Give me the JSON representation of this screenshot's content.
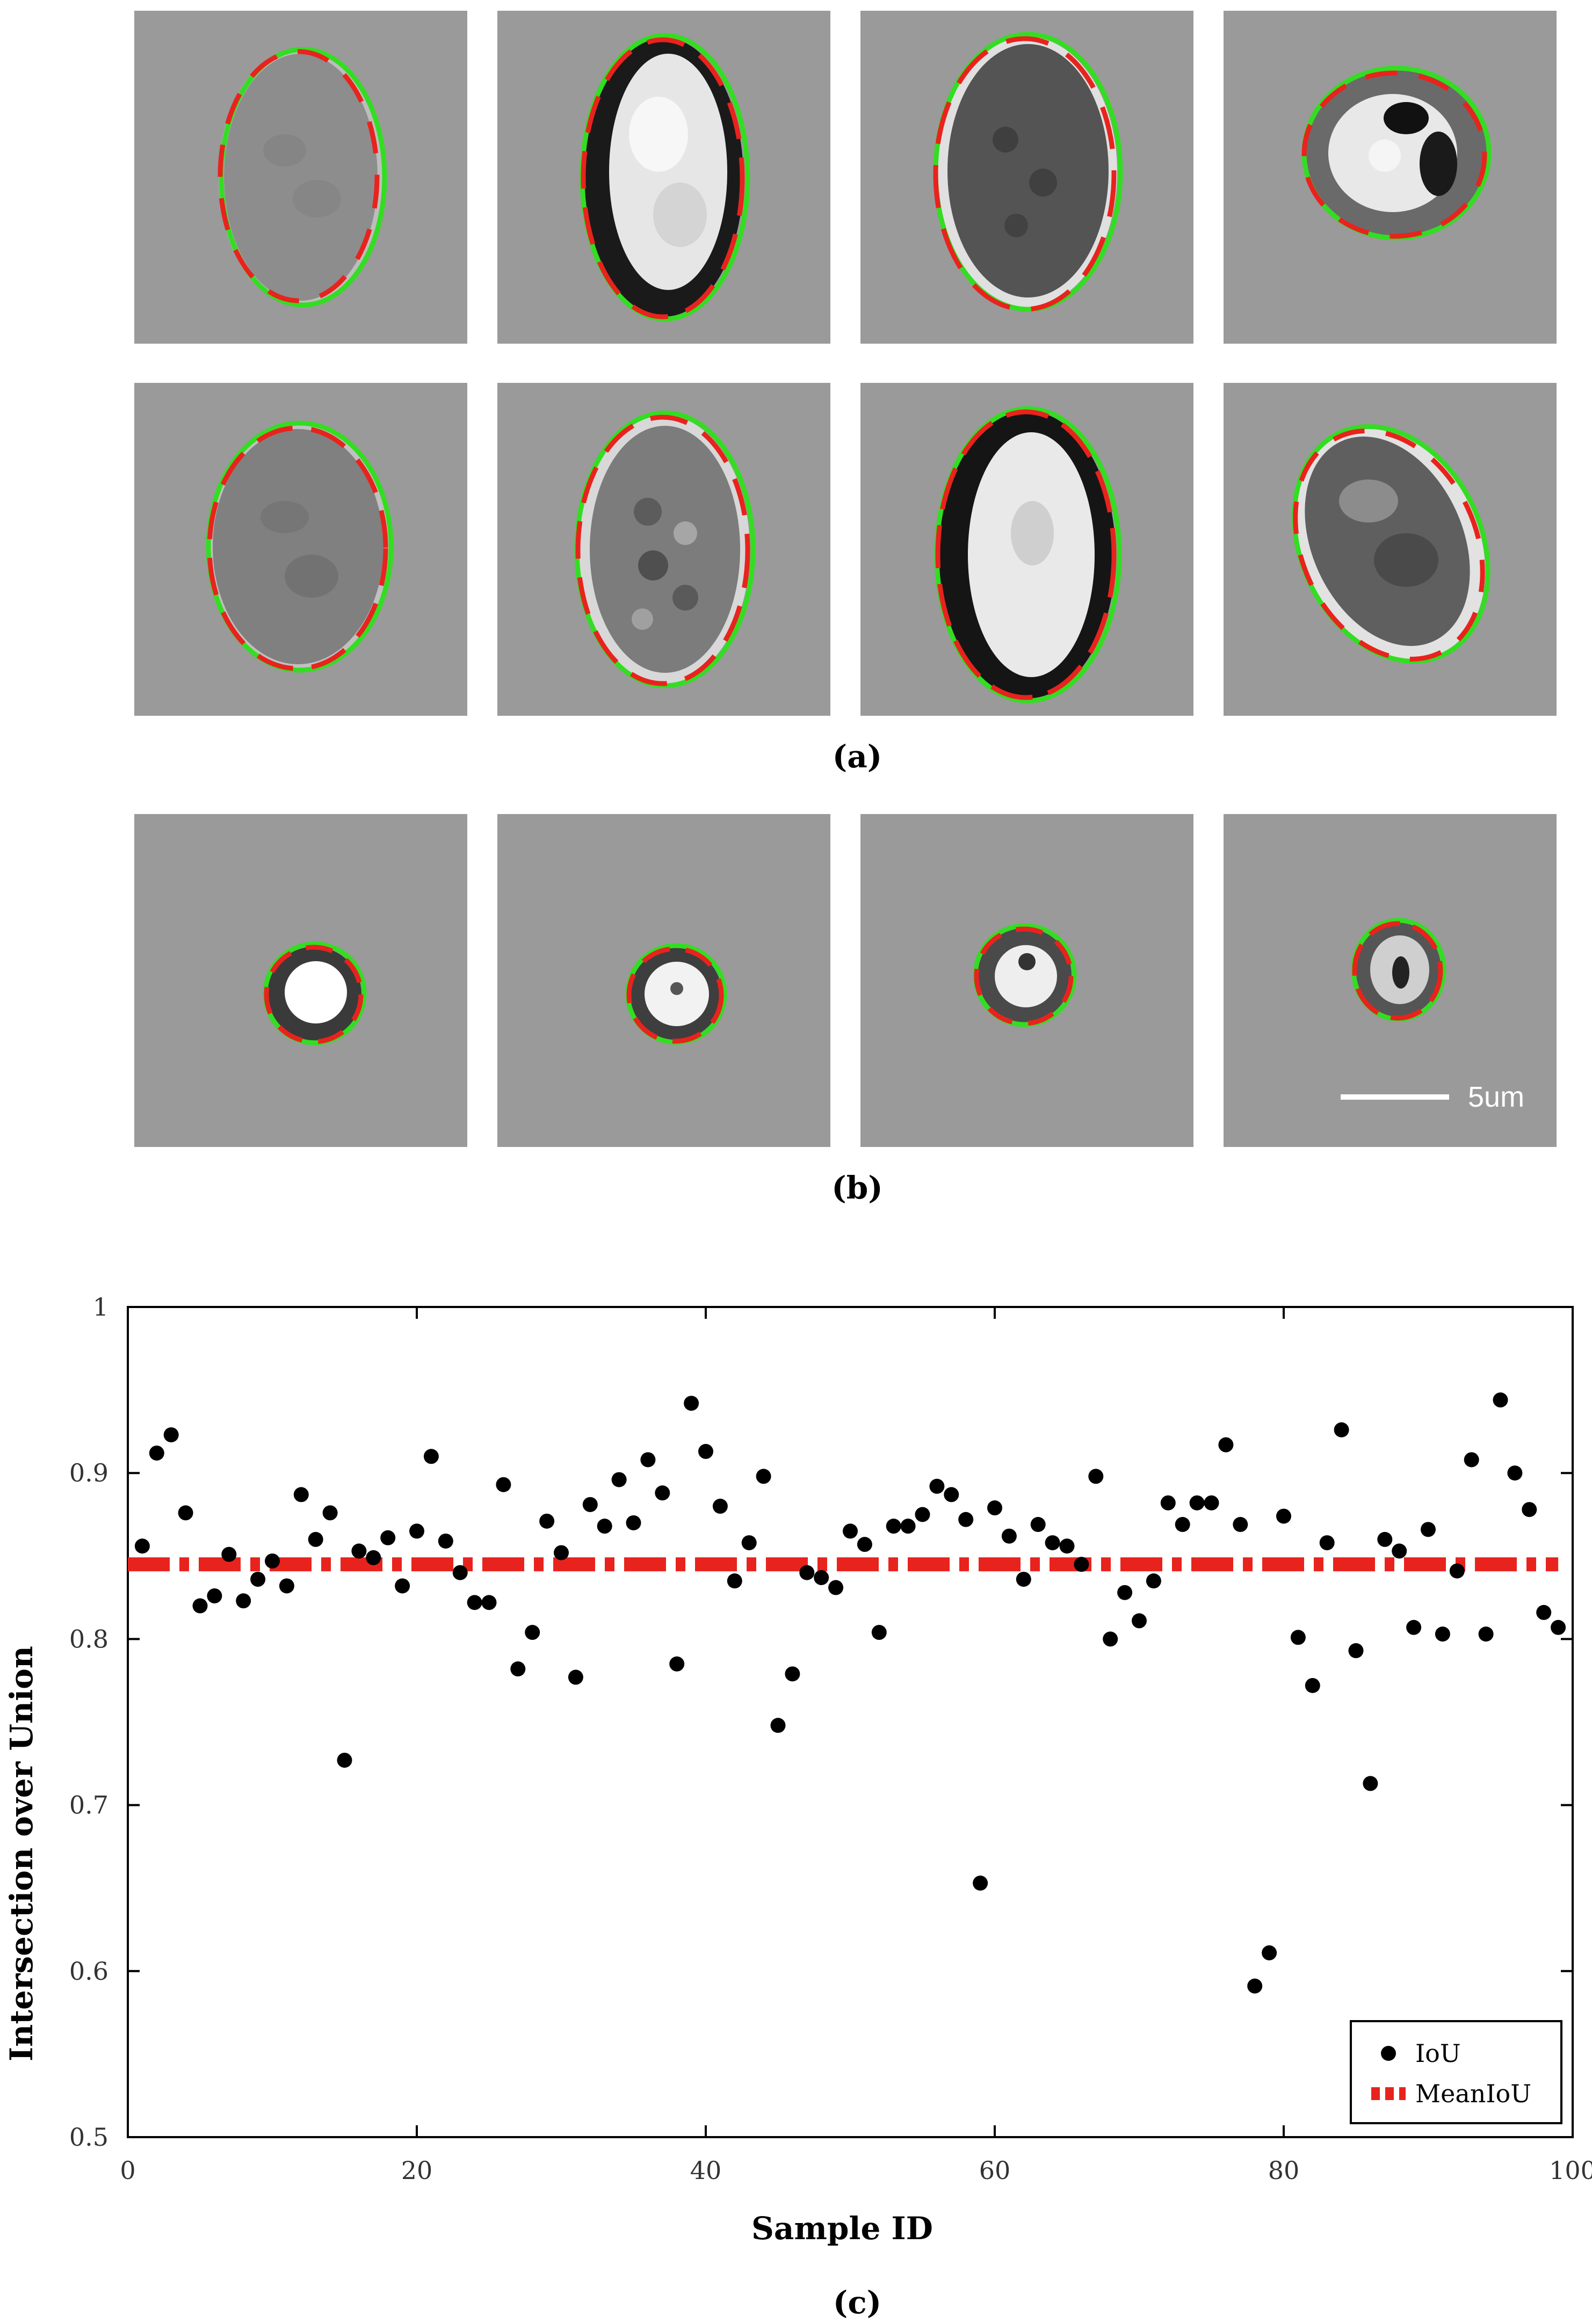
{
  "panels": {
    "a_label": "(a)",
    "b_label": "(b)",
    "c_label": "(c)"
  },
  "scale_bar": {
    "label": "5um"
  },
  "colors": {
    "tile_background": "#9a9a9a",
    "ground_truth_contour": "#33dd22",
    "predicted_contour": "#e8231d",
    "points": "#000000",
    "mean_line": "#e8231d"
  },
  "cells": {
    "row_a1": [
      {
        "shape": "ellipse",
        "interior": "grey"
      },
      {
        "shape": "ellipse",
        "interior": "bright"
      },
      {
        "shape": "ellipse",
        "interior": "dark"
      },
      {
        "shape": "ellipse",
        "interior": "dark-spots"
      }
    ],
    "row_a2": [
      {
        "shape": "ellipse",
        "interior": "grey"
      },
      {
        "shape": "ellipse",
        "interior": "speckled"
      },
      {
        "shape": "ellipse",
        "interior": "bright"
      },
      {
        "shape": "ellipse",
        "interior": "grey"
      }
    ],
    "row_b": [
      {
        "shape": "circle",
        "interior": "bright"
      },
      {
        "shape": "circle",
        "interior": "bright"
      },
      {
        "shape": "circle",
        "interior": "bright"
      },
      {
        "shape": "circle",
        "interior": "grey"
      }
    ]
  },
  "chart_data": {
    "type": "scatter",
    "xlabel": "Sample ID",
    "ylabel": "Intersection over Union",
    "xlim": [
      0,
      100
    ],
    "ylim": [
      0.5,
      1.0
    ],
    "xticks": [
      "0",
      "20",
      "40",
      "60",
      "80",
      "100"
    ],
    "yticks": [
      "0.5",
      "0.6",
      "0.7",
      "0.8",
      "0.9",
      "1"
    ],
    "grid": false,
    "legend": {
      "placement": "bottom-right",
      "entries": [
        "IoU",
        "MeanIoU"
      ]
    },
    "series": [
      {
        "name": "IoU",
        "style": "points",
        "x": [
          1,
          2,
          3,
          4,
          5,
          6,
          7,
          8,
          9,
          10,
          11,
          12,
          13,
          14,
          15,
          16,
          17,
          18,
          19,
          20,
          21,
          22,
          23,
          24,
          25,
          26,
          27,
          28,
          29,
          30,
          31,
          32,
          33,
          34,
          35,
          36,
          37,
          38,
          39,
          40,
          41,
          42,
          43,
          44,
          45,
          46,
          47,
          48,
          49,
          50,
          51,
          52,
          53,
          54,
          55,
          56,
          57,
          58,
          59,
          60,
          61,
          62,
          63,
          64,
          65,
          66,
          67,
          68,
          69,
          70,
          71,
          72,
          73,
          74,
          75,
          76,
          77,
          78,
          79,
          80,
          81,
          82,
          83,
          84,
          85,
          86,
          87,
          88,
          89,
          90,
          91,
          92,
          93,
          94,
          95,
          96,
          97,
          98,
          99
        ],
        "y": [
          0.856,
          0.912,
          0.923,
          0.876,
          0.82,
          0.826,
          0.851,
          0.823,
          0.836,
          0.847,
          0.832,
          0.887,
          0.86,
          0.876,
          0.727,
          0.853,
          0.849,
          0.861,
          0.832,
          0.865,
          0.91,
          0.859,
          0.84,
          0.822,
          0.822,
          0.893,
          0.782,
          0.804,
          0.871,
          0.852,
          0.777,
          0.881,
          0.868,
          0.896,
          0.87,
          0.908,
          0.888,
          0.785,
          0.942,
          0.913,
          0.88,
          0.835,
          0.858,
          0.898,
          0.748,
          0.779,
          0.84,
          0.837,
          0.831,
          0.865,
          0.857,
          0.804,
          0.868,
          0.868,
          0.875,
          0.892,
          0.887,
          0.872,
          0.653,
          0.879,
          0.862,
          0.836,
          0.869,
          0.858,
          0.856,
          0.845,
          0.898,
          0.8,
          0.828,
          0.811,
          0.835,
          0.882,
          0.869,
          0.882,
          0.882,
          0.917,
          0.869,
          0.591,
          0.611,
          0.874,
          0.801,
          0.772,
          0.858,
          0.926,
          0.793,
          0.713,
          0.86,
          0.853,
          0.807,
          0.866,
          0.803,
          0.841,
          0.908,
          0.803,
          0.944,
          0.9,
          0.878,
          0.816,
          0.807
        ]
      },
      {
        "name": "MeanIoU",
        "style": "dash-dot line",
        "x": [
          0,
          99
        ],
        "y": [
          0.845,
          0.845
        ]
      }
    ]
  }
}
